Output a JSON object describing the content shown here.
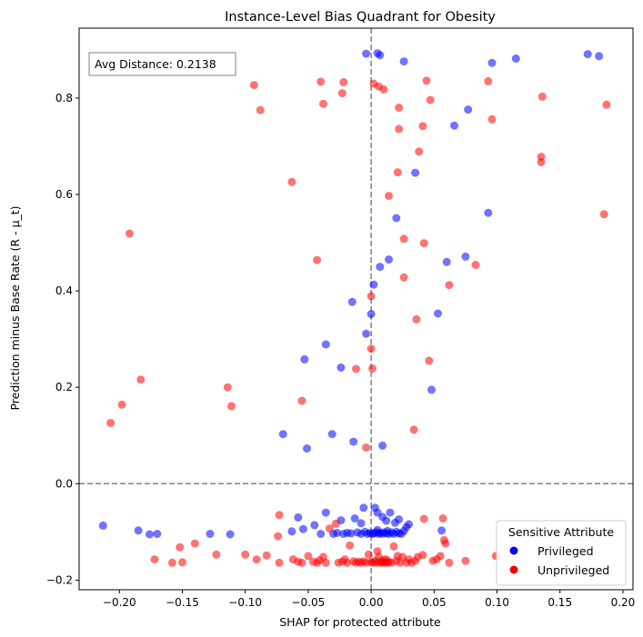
{
  "chart_data": {
    "type": "scatter",
    "title": "Instance-Level Bias Quadrant for Obesity",
    "xlabel": "SHAP for protected attribute",
    "ylabel": "Prediction minus Base Rate (R - μ_t)",
    "xlim": [
      -0.232,
      0.208
    ],
    "ylim": [
      -0.22,
      0.945
    ],
    "xticks": [
      -0.2,
      -0.15,
      -0.1,
      -0.05,
      0.0,
      0.05,
      0.1,
      0.15,
      0.2
    ],
    "xtick_labels": [
      "−0.20",
      "−0.15",
      "−0.10",
      "−0.05",
      "0.00",
      "0.05",
      "0.10",
      "0.15",
      "0.20"
    ],
    "yticks": [
      -0.2,
      0.0,
      0.2,
      0.4,
      0.6,
      0.8
    ],
    "ytick_labels": [
      "−0.2",
      "0.0",
      "0.2",
      "0.4",
      "0.6",
      "0.8"
    ],
    "grid": false,
    "reference_lines": {
      "x": 0.0,
      "y": 0.0,
      "style": "dashed",
      "color": "#808080"
    },
    "annotation": {
      "text": "Avg Distance: 0.2138",
      "placement": "top-left"
    },
    "legend": {
      "title": "Sensitive Attribute",
      "placement": "bottom-right",
      "entries": [
        "Privileged",
        "Unprivileged"
      ]
    },
    "series": [
      {
        "name": "Privileged",
        "color": "#0000ff",
        "points": [
          [
            -0.213,
            -0.087
          ],
          [
            -0.185,
            -0.097
          ],
          [
            -0.176,
            -0.105
          ],
          [
            -0.17,
            -0.104
          ],
          [
            -0.128,
            -0.104
          ],
          [
            -0.112,
            -0.105
          ],
          [
            -0.063,
            -0.099
          ],
          [
            -0.058,
            -0.07
          ],
          [
            -0.054,
            -0.094
          ],
          [
            -0.045,
            -0.086
          ],
          [
            -0.04,
            -0.104
          ],
          [
            -0.036,
            -0.06
          ],
          [
            -0.03,
            -0.104
          ],
          [
            -0.027,
            -0.102
          ],
          [
            -0.024,
            -0.076
          ],
          [
            -0.022,
            -0.104
          ],
          [
            -0.019,
            -0.102
          ],
          [
            -0.016,
            -0.103
          ],
          [
            -0.013,
            -0.072
          ],
          [
            -0.011,
            -0.101
          ],
          [
            -0.008,
            -0.104
          ],
          [
            -0.005,
            -0.1
          ],
          [
            -0.003,
            -0.104
          ],
          [
            -0.001,
            -0.102
          ],
          [
            0.001,
            -0.104
          ],
          [
            0.002,
            -0.103
          ],
          [
            0.004,
            -0.101
          ],
          [
            0.005,
            -0.096
          ],
          [
            0.006,
            -0.104
          ],
          [
            0.007,
            -0.102
          ],
          [
            0.009,
            -0.104
          ],
          [
            0.01,
            -0.101
          ],
          [
            0.012,
            -0.103
          ],
          [
            0.013,
            -0.098
          ],
          [
            0.014,
            -0.104
          ],
          [
            0.016,
            -0.101
          ],
          [
            0.018,
            -0.104
          ],
          [
            0.02,
            -0.1
          ],
          [
            0.022,
            -0.103
          ],
          [
            0.024,
            -0.104
          ],
          [
            0.026,
            -0.098
          ],
          [
            0.028,
            -0.09
          ],
          [
            0.03,
            -0.084
          ],
          [
            0.003,
            -0.05
          ],
          [
            0.005,
            -0.06
          ],
          [
            0.009,
            -0.069
          ],
          [
            0.012,
            -0.077
          ],
          [
            0.015,
            -0.06
          ],
          [
            0.019,
            -0.081
          ],
          [
            0.022,
            -0.074
          ],
          [
            -0.008,
            -0.082
          ],
          [
            -0.006,
            -0.05
          ],
          [
            0.056,
            -0.097
          ],
          [
            -0.004,
            0.892
          ],
          [
            0.005,
            0.893
          ],
          [
            0.007,
            0.889
          ],
          [
            0.026,
            0.876
          ],
          [
            0.096,
            0.873
          ],
          [
            0.115,
            0.882
          ],
          [
            0.172,
            0.891
          ],
          [
            0.181,
            0.887
          ],
          [
            0.077,
            0.776
          ],
          [
            0.066,
            0.743
          ],
          [
            0.035,
            0.645
          ],
          [
            0.02,
            0.551
          ],
          [
            0.093,
            0.562
          ],
          [
            0.075,
            0.471
          ],
          [
            0.06,
            0.46
          ],
          [
            0.014,
            0.465
          ],
          [
            0.007,
            0.45
          ],
          [
            0.002,
            0.413
          ],
          [
            -0.015,
            0.377
          ],
          [
            0.053,
            0.353
          ],
          [
            0.0,
            0.352
          ],
          [
            -0.004,
            0.311
          ],
          [
            -0.036,
            0.289
          ],
          [
            -0.053,
            0.258
          ],
          [
            -0.024,
            0.241
          ],
          [
            0.048,
            0.195
          ],
          [
            -0.07,
            0.103
          ],
          [
            -0.031,
            0.103
          ],
          [
            -0.014,
            0.087
          ],
          [
            -0.051,
            0.073
          ],
          [
            0.009,
            0.079
          ]
        ]
      },
      {
        "name": "Unprivileged",
        "color": "#ff0000",
        "points": [
          [
            -0.172,
            -0.157
          ],
          [
            -0.158,
            -0.164
          ],
          [
            -0.152,
            -0.132
          ],
          [
            -0.15,
            -0.163
          ],
          [
            -0.14,
            -0.124
          ],
          [
            -0.123,
            -0.147
          ],
          [
            -0.1,
            -0.147
          ],
          [
            -0.091,
            -0.157
          ],
          [
            -0.083,
            -0.149
          ],
          [
            -0.073,
            -0.164
          ],
          [
            -0.074,
            -0.109
          ],
          [
            -0.073,
            -0.065
          ],
          [
            -0.062,
            -0.157
          ],
          [
            -0.058,
            -0.162
          ],
          [
            -0.055,
            -0.164
          ],
          [
            -0.05,
            -0.15
          ],
          [
            -0.046,
            -0.162
          ],
          [
            -0.043,
            -0.164
          ],
          [
            -0.041,
            -0.159
          ],
          [
            -0.038,
            -0.152
          ],
          [
            -0.036,
            -0.164
          ],
          [
            -0.033,
            -0.093
          ],
          [
            -0.028,
            -0.083
          ],
          [
            -0.026,
            -0.164
          ],
          [
            -0.023,
            -0.162
          ],
          [
            -0.021,
            -0.157
          ],
          [
            -0.019,
            -0.164
          ],
          [
            -0.017,
            -0.128
          ],
          [
            -0.014,
            -0.161
          ],
          [
            -0.012,
            -0.164
          ],
          [
            -0.01,
            -0.162
          ],
          [
            -0.008,
            -0.164
          ],
          [
            -0.006,
            -0.161
          ],
          [
            -0.004,
            -0.164
          ],
          [
            -0.002,
            -0.147
          ],
          [
            0.0,
            -0.162
          ],
          [
            0.001,
            -0.164
          ],
          [
            0.003,
            -0.16
          ],
          [
            0.004,
            -0.164
          ],
          [
            0.005,
            -0.14
          ],
          [
            0.006,
            -0.152
          ],
          [
            0.007,
            -0.164
          ],
          [
            0.008,
            -0.161
          ],
          [
            0.009,
            -0.164
          ],
          [
            0.01,
            -0.158
          ],
          [
            0.011,
            -0.164
          ],
          [
            0.012,
            -0.157
          ],
          [
            0.013,
            -0.164
          ],
          [
            0.014,
            -0.162
          ],
          [
            0.016,
            -0.164
          ],
          [
            0.018,
            -0.13
          ],
          [
            0.02,
            -0.16
          ],
          [
            0.021,
            -0.15
          ],
          [
            0.023,
            -0.164
          ],
          [
            0.025,
            -0.152
          ],
          [
            0.028,
            -0.164
          ],
          [
            0.03,
            -0.157
          ],
          [
            0.032,
            -0.164
          ],
          [
            0.035,
            -0.16
          ],
          [
            0.037,
            -0.152
          ],
          [
            0.041,
            -0.148
          ],
          [
            0.042,
            -0.073
          ],
          [
            0.049,
            -0.16
          ],
          [
            0.052,
            -0.157
          ],
          [
            0.055,
            -0.15
          ],
          [
            0.057,
            -0.072
          ],
          [
            0.058,
            -0.117
          ],
          [
            0.059,
            -0.124
          ],
          [
            0.062,
            -0.164
          ],
          [
            0.099,
            -0.15
          ],
          [
            0.075,
            -0.16
          ],
          [
            -0.093,
            0.827
          ],
          [
            -0.088,
            0.775
          ],
          [
            -0.04,
            0.834
          ],
          [
            -0.038,
            0.788
          ],
          [
            -0.022,
            0.833
          ],
          [
            -0.023,
            0.81
          ],
          [
            0.002,
            0.83
          ],
          [
            0.006,
            0.824
          ],
          [
            0.01,
            0.818
          ],
          [
            0.022,
            0.78
          ],
          [
            0.022,
            0.736
          ],
          [
            0.044,
            0.836
          ],
          [
            0.047,
            0.796
          ],
          [
            0.041,
            0.742
          ],
          [
            0.093,
            0.835
          ],
          [
            0.096,
            0.756
          ],
          [
            0.136,
            0.803
          ],
          [
            0.187,
            0.786
          ],
          [
            0.038,
            0.689
          ],
          [
            0.135,
            0.678
          ],
          [
            0.135,
            0.667
          ],
          [
            0.021,
            0.646
          ],
          [
            -0.063,
            0.626
          ],
          [
            0.014,
            0.597
          ],
          [
            0.185,
            0.559
          ],
          [
            -0.192,
            0.519
          ],
          [
            0.026,
            0.508
          ],
          [
            0.042,
            0.499
          ],
          [
            -0.043,
            0.464
          ],
          [
            0.083,
            0.454
          ],
          [
            0.026,
            0.428
          ],
          [
            0.062,
            0.412
          ],
          [
            0.0,
            0.389
          ],
          [
            0.036,
            0.341
          ],
          [
            0.0,
            0.28
          ],
          [
            0.046,
            0.255
          ],
          [
            0.001,
            0.239
          ],
          [
            -0.012,
            0.238
          ],
          [
            -0.183,
            0.216
          ],
          [
            -0.114,
            0.2
          ],
          [
            -0.055,
            0.172
          ],
          [
            -0.198,
            0.164
          ],
          [
            -0.111,
            0.161
          ],
          [
            -0.207,
            0.126
          ],
          [
            0.034,
            0.112
          ],
          [
            -0.004,
            0.075
          ]
        ]
      }
    ]
  }
}
